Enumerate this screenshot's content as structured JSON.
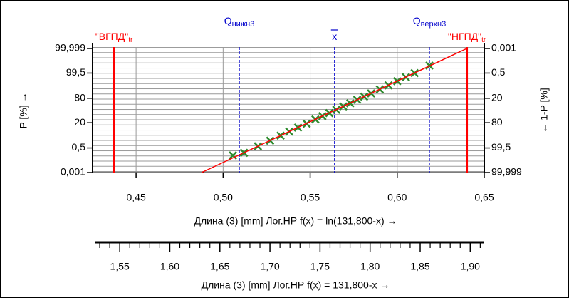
{
  "chart_data": {
    "type": "probability",
    "x_label": "Длина (3) [mm]  Лог.НР   f(x) = ln(131,800-x) →",
    "x2_label": "Длина (3) [mm]  Лог.НР   f(x) = 131,800-x →",
    "y_label": "P [%] →",
    "y2_label": "← 1-P [%]",
    "xlim": [
      0.425,
      0.65
    ],
    "xticks": [
      {
        "value": 0.45,
        "label": "0,45"
      },
      {
        "value": 0.5,
        "label": "0,50"
      },
      {
        "value": 0.55,
        "label": "0,55"
      },
      {
        "value": 0.6,
        "label": "0,60"
      },
      {
        "value": 0.65,
        "label": "0,65"
      }
    ],
    "x2lim": [
      1.525,
      1.914
    ],
    "x2ticks": [
      {
        "value": 1.55,
        "label": "1,55"
      },
      {
        "value": 1.6,
        "label": "1,60"
      },
      {
        "value": 1.65,
        "label": "1,65"
      },
      {
        "value": 1.7,
        "label": "1,70"
      },
      {
        "value": 1.75,
        "label": "1,75"
      },
      {
        "value": 1.8,
        "label": "1,80"
      },
      {
        "value": 1.85,
        "label": "1,85"
      },
      {
        "value": 1.9,
        "label": "1,90"
      }
    ],
    "x2minorticks": [
      1.53,
      1.54,
      1.56,
      1.57,
      1.58,
      1.59,
      1.61,
      1.62,
      1.63,
      1.64,
      1.66,
      1.67,
      1.68,
      1.69,
      1.71,
      1.72,
      1.73,
      1.74,
      1.76,
      1.77,
      1.78,
      1.79,
      1.81,
      1.82,
      1.83,
      1.84,
      1.86,
      1.87,
      1.88,
      1.89,
      1.91
    ],
    "ylim": [
      0.001,
      99.999
    ],
    "yticks": [
      {
        "value": 0.001,
        "label": "0,001"
      },
      {
        "value": 0.5,
        "label": "0,5"
      },
      20,
      80,
      {
        "value": 99.5,
        "label": "99,5"
      },
      {
        "value": 99.999,
        "label": "99,999"
      }
    ],
    "y2lim": [
      99.999,
      0.001
    ],
    "y2ticks": [
      {
        "value": 0.001,
        "label": "0,001"
      },
      {
        "value": 0.5,
        "label": "0,5"
      },
      20,
      80,
      {
        "value": 99.5,
        "label": "99,5"
      },
      {
        "value": 99.999,
        "label": "99,999"
      }
    ],
    "grid": true,
    "series": [
      {
        "color": "#2e8b2e",
        "marker": "x",
        "x": [
          0.5056,
          0.512,
          0.52,
          0.527,
          0.533,
          0.538,
          0.543,
          0.548,
          0.553,
          0.557,
          0.561,
          0.565,
          0.569,
          0.573,
          0.577,
          0.581,
          0.585,
          0.59,
          0.595,
          0.6,
          0.605,
          0.61,
          0.6185
        ],
        "values": [
          0.1,
          0.18,
          0.7,
          1.9,
          4.2,
          7.3,
          12,
          18,
          27,
          35,
          43,
          52,
          61,
          69,
          77,
          83,
          88,
          92.7,
          95.8,
          97.8,
          98.9,
          99.5,
          99.9
        ]
      },
      {
        "color": "#ff0000",
        "marker": "line",
        "x": [
          0.4876,
          0.64
        ],
        "values": [
          0.001,
          99.999
        ]
      }
    ],
    "reference_lines": [
      {
        "label": "Q",
        "sub": "нижн3",
        "x": 0.5093,
        "color": "#0000cc"
      },
      {
        "label": "x",
        "overline": true,
        "x": 0.564,
        "color": "#0000cc"
      },
      {
        "label": "Q",
        "sub": "верхн3",
        "x": 0.6185,
        "color": "#0000cc"
      }
    ],
    "limits": [
      {
        "label": "\"ВГПД\"",
        "sub": "tr",
        "x": 0.4373,
        "color": "#ff0000"
      },
      {
        "label": "\"НГПД\"",
        "sub": "tr",
        "x": 0.64,
        "color": "#ff0000"
      }
    ]
  }
}
